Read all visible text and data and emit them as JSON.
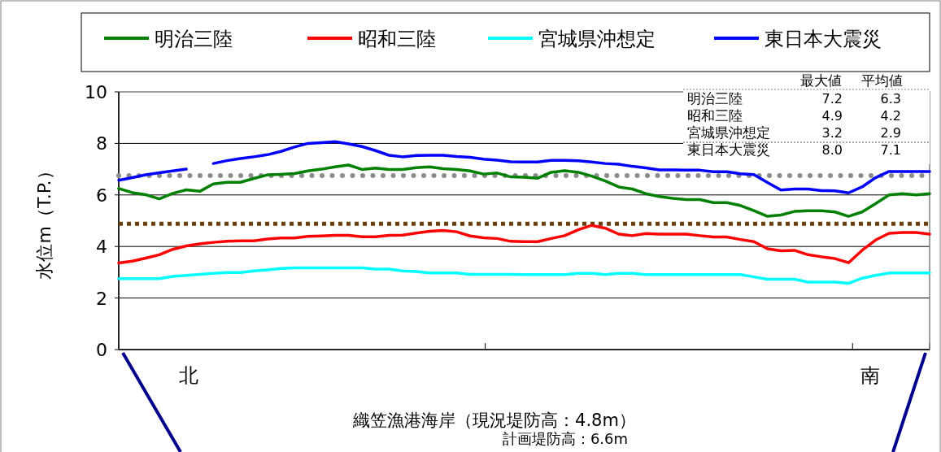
{
  "chart_data": {
    "type": "line",
    "ylabel": "水位m（T.P.）",
    "categories": [
      null,
      null,
      null,
      null,
      null,
      null,
      null,
      null,
      null,
      null,
      null,
      null,
      null,
      null,
      null,
      null,
      null,
      null,
      null,
      null,
      null,
      null,
      null,
      null,
      null,
      null,
      null,
      null,
      null,
      null,
      null,
      null,
      null,
      null,
      null,
      null,
      null,
      null,
      null,
      null,
      null,
      null,
      null,
      null,
      null,
      null,
      null,
      null,
      null,
      null,
      null,
      null,
      null,
      null,
      null,
      null,
      null,
      null,
      null,
      null,
      null
    ],
    "series": [
      {
        "name": "明治三陸",
        "color": "#008000",
        "values": [
          6.25,
          6.09,
          6.01,
          5.85,
          6.06,
          6.2,
          6.14,
          6.43,
          6.49,
          6.49,
          6.64,
          6.78,
          6.8,
          6.83,
          6.93,
          7.0,
          7.09,
          7.16,
          6.99,
          7.04,
          6.99,
          6.99,
          7.06,
          7.09,
          7.02,
          6.99,
          6.93,
          6.81,
          6.85,
          6.7,
          6.69,
          6.65,
          6.88,
          6.94,
          6.88,
          6.73,
          6.54,
          6.31,
          6.23,
          6.05,
          5.94,
          5.87,
          5.82,
          5.82,
          5.7,
          5.7,
          5.59,
          5.39,
          5.17,
          5.22,
          5.36,
          5.39,
          5.39,
          5.34,
          5.17,
          5.34,
          5.66,
          6.0,
          6.05,
          6.0,
          6.05
        ]
      },
      {
        "name": "昭和三陸",
        "color": "#ff0000",
        "values": [
          3.36,
          3.43,
          3.55,
          3.68,
          3.89,
          4.02,
          4.1,
          4.16,
          4.2,
          4.22,
          4.22,
          4.29,
          4.33,
          4.33,
          4.39,
          4.41,
          4.43,
          4.43,
          4.38,
          4.38,
          4.43,
          4.44,
          4.52,
          4.59,
          4.62,
          4.57,
          4.41,
          4.34,
          4.31,
          4.2,
          4.19,
          4.19,
          4.31,
          4.42,
          4.65,
          4.82,
          4.71,
          4.48,
          4.42,
          4.5,
          4.48,
          4.48,
          4.48,
          4.42,
          4.37,
          4.37,
          4.27,
          4.19,
          3.91,
          3.83,
          3.85,
          3.68,
          3.6,
          3.53,
          3.37,
          3.85,
          4.25,
          4.51,
          4.54,
          4.54,
          4.48
        ]
      },
      {
        "name": "宮城県沖想定",
        "color": "#00ffff",
        "values": [
          2.75,
          2.75,
          2.75,
          2.75,
          2.84,
          2.88,
          2.92,
          2.96,
          2.99,
          2.99,
          3.05,
          3.09,
          3.15,
          3.17,
          3.17,
          3.17,
          3.17,
          3.17,
          3.17,
          3.12,
          3.12,
          3.05,
          3.03,
          2.97,
          2.97,
          2.97,
          2.92,
          2.92,
          2.92,
          2.92,
          2.91,
          2.91,
          2.91,
          2.91,
          2.96,
          2.96,
          2.91,
          2.96,
          2.96,
          2.91,
          2.91,
          2.91,
          2.91,
          2.91,
          2.91,
          2.91,
          2.91,
          2.82,
          2.73,
          2.73,
          2.73,
          2.62,
          2.62,
          2.62,
          2.57,
          2.77,
          2.88,
          2.97,
          2.97,
          2.97,
          2.97
        ]
      },
      {
        "name": "東日本大震災",
        "color": "#0000ff",
        "values": [
          6.57,
          6.67,
          6.78,
          6.86,
          6.93,
          7.0,
          null,
          7.22,
          7.33,
          7.41,
          7.48,
          7.56,
          7.69,
          7.86,
          8.0,
          8.03,
          8.07,
          7.98,
          7.88,
          7.72,
          7.54,
          7.48,
          7.53,
          7.54,
          7.54,
          7.49,
          7.46,
          7.39,
          7.35,
          7.29,
          7.28,
          7.28,
          7.34,
          7.34,
          7.33,
          7.28,
          7.22,
          7.19,
          7.11,
          7.05,
          6.97,
          6.97,
          6.96,
          6.96,
          6.9,
          6.9,
          6.82,
          6.79,
          6.48,
          6.19,
          6.23,
          6.23,
          6.17,
          6.16,
          6.08,
          6.31,
          6.67,
          6.91,
          6.91,
          6.91,
          6.91
        ]
      }
    ],
    "ref_lines": [
      {
        "axis": "y",
        "value": 6.75,
        "color": "#8c8c8c",
        "line_style": "dotted"
      },
      {
        "axis": "y",
        "value": 4.88,
        "color": "#6b3e0e",
        "line_style": "dotted"
      }
    ],
    "ylim": [
      0,
      10
    ],
    "yticks": [
      0,
      2,
      4,
      6,
      8,
      10
    ],
    "grid": "y",
    "legend": "top",
    "annotations": [
      "最大値",
      "平均値",
      "明治三陸",
      "7.2",
      "6.3",
      "昭和三陸",
      "4.9",
      "4.2",
      "宮城県沖想定",
      "3.2",
      "2.9",
      "東日本大震災",
      "8.0",
      "7.1",
      "北",
      "南",
      "織笠漁港海岸（現況堤防高：4.8m）",
      "計画堤防高：6.6m"
    ]
  }
}
